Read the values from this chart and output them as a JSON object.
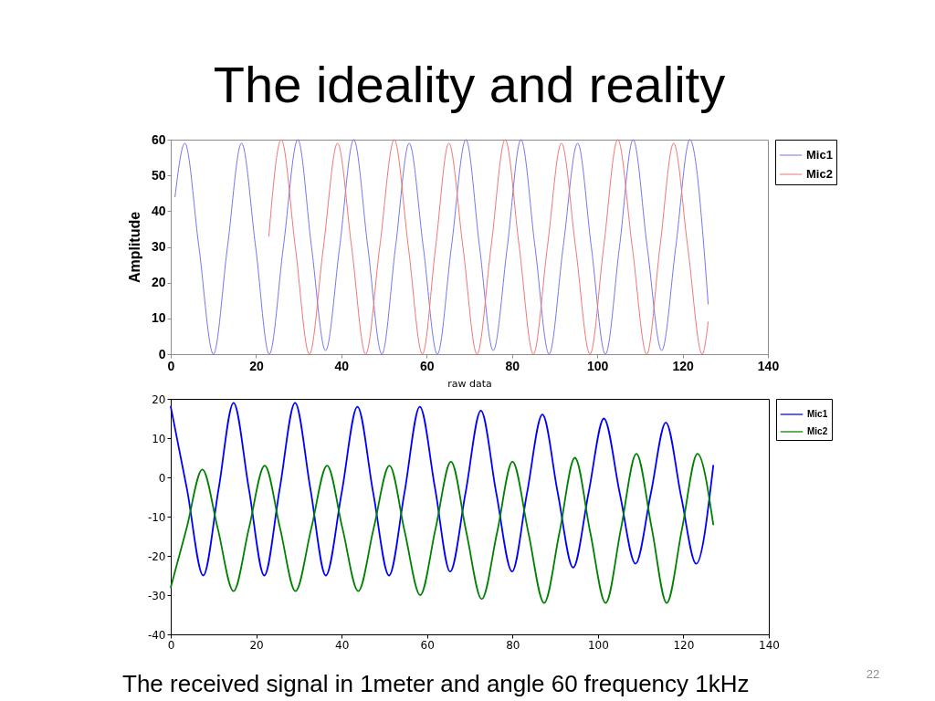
{
  "chart_data": [
    {
      "type": "line",
      "title": "The ideality and reality",
      "xlabel": "raw data",
      "ylabel": "Amplitude",
      "xlim": [
        0,
        140
      ],
      "xticks": [
        0,
        20,
        40,
        60,
        80,
        100,
        120,
        140
      ],
      "ylim": [
        0,
        60
      ],
      "yticks": [
        0,
        10,
        20,
        30,
        40,
        50,
        60
      ],
      "grid": false,
      "legend": "top right",
      "line_style": "solid",
      "series": [
        {
          "name": "Mic1",
          "color": "#7575f0",
          "x": [
            1,
            3.3,
            6.6,
            10.0,
            13.3,
            16.6,
            19.9,
            23.1,
            26.4,
            29.8,
            33.0,
            36.3,
            39.6,
            42.9,
            46.2,
            49.5,
            52.7,
            55.9,
            59.2,
            62.5,
            65.8,
            69.2,
            72.4,
            75.6,
            78.9,
            82.1,
            85.4,
            88.7,
            92.0,
            95.4,
            98.6,
            101.9,
            105.2,
            108.4,
            111.7,
            115.1,
            118.4,
            121.7,
            126
          ],
          "values": [
            44,
            59,
            30,
            0,
            30,
            59,
            30,
            0,
            30,
            60,
            30,
            1,
            30,
            60,
            30,
            0,
            30,
            59,
            30,
            0,
            30,
            60,
            30,
            1,
            30,
            60,
            30,
            0,
            30,
            59,
            30,
            0,
            30,
            60,
            30,
            1,
            30,
            60,
            14
          ]
        },
        {
          "name": "Mic2",
          "color": "#f07575",
          "x": [
            23.0,
            25.9,
            29.2,
            32.5,
            35.8,
            39.1,
            42.4,
            45.7,
            49.0,
            52.4,
            55.7,
            59.0,
            62.1,
            65.2,
            68.5,
            71.8,
            75.1,
            78.4,
            81.7,
            85.0,
            88.3,
            91.6,
            94.9,
            98.3,
            101.5,
            104.8,
            108.2,
            111.6,
            114.7,
            117.9,
            121.2,
            124.6,
            126
          ],
          "values": [
            33,
            60,
            30,
            0,
            30,
            59,
            30,
            0,
            30,
            60,
            30,
            0,
            30,
            59,
            30,
            0,
            30,
            60,
            30,
            0,
            30,
            59,
            30,
            0,
            30,
            60,
            30,
            0,
            30,
            59,
            30,
            0,
            9
          ]
        }
      ]
    },
    {
      "type": "line",
      "xlim": [
        0,
        140
      ],
      "xticks": [
        0,
        20,
        40,
        60,
        80,
        100,
        120,
        140
      ],
      "ylim": [
        -40,
        20
      ],
      "yticks": [
        -40,
        -30,
        -20,
        -10,
        0,
        10,
        20
      ],
      "grid": false,
      "legend": "top right",
      "line_style": "solid",
      "series": [
        {
          "name": "Mic1",
          "color": "#0000ff",
          "x": [
            0,
            3.8,
            7.6,
            11.2,
            14.7,
            18.3,
            21.9,
            25.5,
            29.1,
            32.7,
            36.3,
            40.0,
            43.7,
            47.4,
            51.1,
            54.7,
            58.3,
            61.9,
            65.4,
            69.0,
            72.6,
            76.2,
            79.9,
            83.4,
            87.0,
            90.6,
            94.2,
            97.8,
            101.4,
            105.1,
            108.8,
            112.4,
            115.9,
            119.5,
            123.0,
            127
          ],
          "values": [
            18,
            -3,
            -25,
            -3,
            19,
            -3,
            -25,
            -3,
            19,
            -3,
            -25,
            -4,
            18,
            -4,
            -25,
            -4,
            18,
            -3,
            -24,
            -4,
            17,
            -4,
            -24,
            -4,
            16,
            -4,
            -23,
            -4,
            15,
            -4,
            -22,
            -4,
            14,
            -5,
            -22,
            3
          ]
        },
        {
          "name": "Mic2",
          "color": "#008000",
          "x": [
            0,
            3.7,
            7.4,
            11.0,
            14.7,
            18.3,
            22.0,
            25.6,
            29.2,
            32.9,
            36.6,
            40.2,
            43.9,
            47.5,
            51.2,
            54.8,
            58.4,
            62.0,
            65.6,
            69.2,
            72.8,
            76.4,
            80.0,
            83.7,
            87.4,
            91.0,
            94.6,
            98.2,
            101.8,
            105.4,
            109.0,
            112.6,
            116.1,
            119.7,
            123.3,
            127
          ],
          "values": [
            -28,
            -13,
            2,
            -13,
            -29,
            -13,
            3,
            -13,
            -29,
            -13,
            3,
            -13,
            -29,
            -13,
            3,
            -14,
            -30,
            -13,
            4,
            -14,
            -31,
            -14,
            4,
            -14,
            -32,
            -14,
            5,
            -14,
            -32,
            -13,
            6,
            -13,
            -32,
            -13,
            6,
            -12
          ]
        }
      ],
      "annotations": [
        "The received signal in 1meter and angle 60 frequency 1kHz",
        "22"
      ]
    }
  ]
}
